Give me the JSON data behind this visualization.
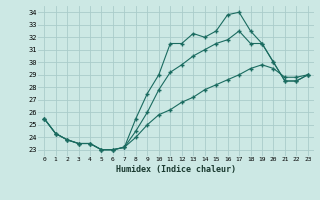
{
  "xlabel": "Humidex (Indice chaleur)",
  "background_color": "#cce8e4",
  "grid_color": "#aaccca",
  "line_color": "#1a6b60",
  "xlim": [
    -0.5,
    23.5
  ],
  "ylim": [
    22.5,
    34.5
  ],
  "yticks": [
    23,
    24,
    25,
    26,
    27,
    28,
    29,
    30,
    31,
    32,
    33,
    34
  ],
  "xticks": [
    0,
    1,
    2,
    3,
    4,
    5,
    6,
    7,
    8,
    9,
    10,
    11,
    12,
    13,
    14,
    15,
    16,
    17,
    18,
    19,
    20,
    21,
    22,
    23
  ],
  "line1": [
    25.5,
    24.3,
    23.8,
    23.5,
    23.5,
    23.0,
    23.0,
    23.2,
    25.5,
    27.5,
    29.0,
    31.5,
    31.5,
    32.3,
    32.0,
    32.5,
    33.8,
    34.0,
    32.5,
    31.5,
    30.0,
    28.5,
    28.5,
    29.0
  ],
  "line2": [
    25.5,
    24.3,
    23.8,
    23.5,
    23.5,
    23.0,
    23.0,
    23.2,
    24.5,
    26.0,
    27.8,
    29.2,
    29.8,
    30.5,
    31.0,
    31.5,
    31.8,
    32.5,
    31.5,
    31.5,
    30.0,
    28.5,
    28.5,
    29.0
  ],
  "line3": [
    25.5,
    24.3,
    23.8,
    23.5,
    23.5,
    23.0,
    23.0,
    23.2,
    24.0,
    25.0,
    25.8,
    26.2,
    26.8,
    27.2,
    27.8,
    28.2,
    28.6,
    29.0,
    29.5,
    29.8,
    29.5,
    28.8,
    28.8,
    29.0
  ]
}
